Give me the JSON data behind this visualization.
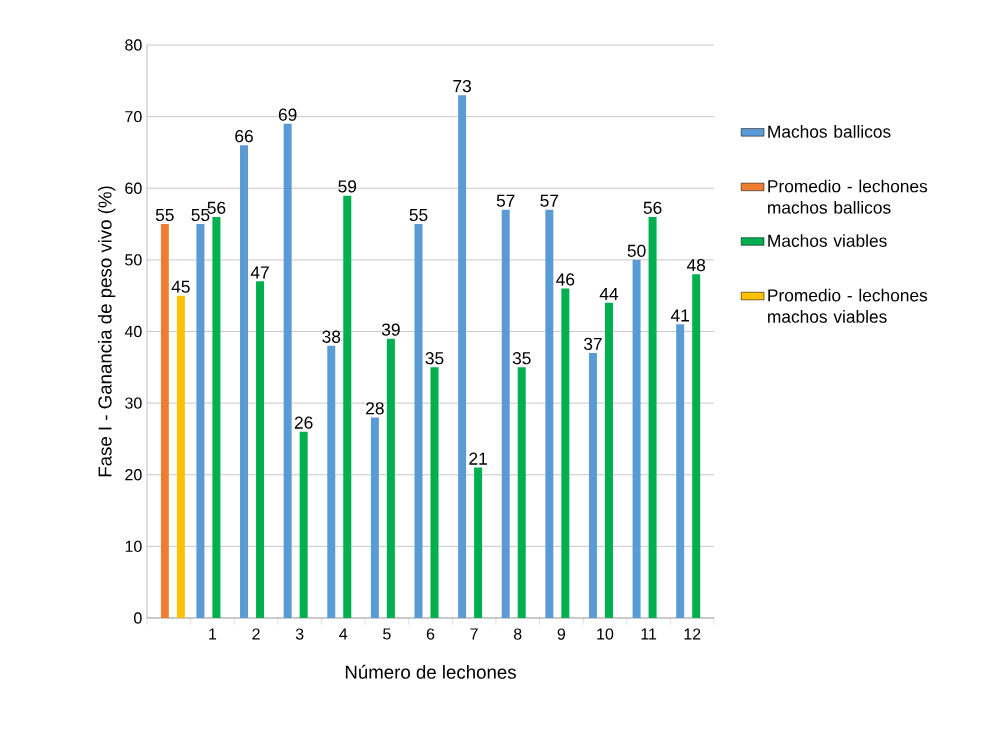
{
  "chart_data": {
    "type": "bar",
    "xlabel": "Número de lechones",
    "ylabel": "Fase I - Ganancia de peso vivo (%)",
    "categories": [
      null,
      "1",
      "2",
      "3",
      "4",
      "5",
      "6",
      "7",
      "8",
      "9",
      "10",
      "11",
      "12"
    ],
    "series": [
      {
        "name": "Machos ballicos",
        "color": "#5b9bd5",
        "values": [
          null,
          55,
          66,
          69,
          38,
          28,
          55,
          73,
          57,
          57,
          37,
          50,
          41
        ]
      },
      {
        "name": "Promedio - lechones machos ballicos",
        "color": "#ed7d31",
        "values": [
          55,
          null,
          null,
          null,
          null,
          null,
          null,
          null,
          null,
          null,
          null,
          null,
          null
        ]
      },
      {
        "name": "Machos viables",
        "color": "#00b050",
        "values": [
          null,
          56,
          47,
          26,
          59,
          39,
          35,
          21,
          35,
          46,
          44,
          56,
          48
        ]
      },
      {
        "name": "Promedio - lechones machos viables",
        "color": "#ffc000",
        "values": [
          45,
          null,
          null,
          null,
          null,
          null,
          null,
          null,
          null,
          null,
          null,
          null,
          null
        ]
      }
    ],
    "ylim": [
      0,
      80
    ],
    "yticks": [
      0,
      10,
      20,
      30,
      40,
      50,
      60,
      70,
      80
    ],
    "grid": "y",
    "legend": "right",
    "data_labels": true
  }
}
